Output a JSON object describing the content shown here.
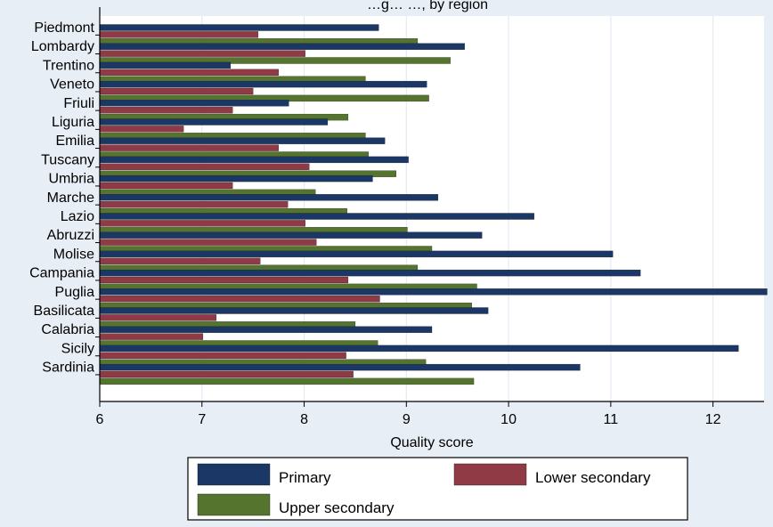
{
  "chart_data": {
    "type": "bar",
    "orientation": "horizontal",
    "title": "…g… …, by region",
    "xlabel": "Quality score",
    "ylabel": "",
    "xlim": [
      6,
      12.5
    ],
    "xticks": [
      6,
      7,
      8,
      9,
      10,
      11,
      12
    ],
    "grid": true,
    "legend_position": "bottom",
    "categories": [
      "Piedmont",
      "Lombardy",
      "Trentino",
      "Veneto",
      "Friuli",
      "Liguria",
      "Emilia",
      "Tuscany",
      "Umbria",
      "Marche",
      "Lazio",
      "Abruzzi",
      "Molise",
      "Campania",
      "Puglia",
      "Basilicata",
      "Calabria",
      "Sicily",
      "Sardinia"
    ],
    "series": [
      {
        "name": "Primary",
        "color": "#1a3765",
        "values": [
          8.73,
          9.57,
          7.28,
          9.2,
          7.85,
          8.23,
          8.79,
          9.02,
          8.67,
          9.31,
          10.25,
          9.74,
          11.02,
          11.29,
          12.53,
          9.8,
          9.25,
          12.25,
          10.7
        ]
      },
      {
        "name": "Lower secondary",
        "color": "#903a46",
        "values": [
          7.55,
          8.01,
          7.75,
          7.5,
          7.3,
          6.82,
          7.75,
          8.05,
          7.3,
          7.84,
          8.01,
          8.12,
          7.57,
          8.43,
          8.74,
          7.14,
          7.01,
          8.41,
          8.48
        ]
      },
      {
        "name": "Upper secondary",
        "color": "#55752f",
        "values": [
          9.11,
          9.43,
          8.6,
          9.22,
          8.43,
          8.6,
          8.63,
          8.9,
          8.11,
          8.42,
          9.01,
          9.25,
          9.11,
          9.69,
          9.64,
          8.5,
          8.72,
          9.19,
          9.66
        ]
      }
    ]
  }
}
